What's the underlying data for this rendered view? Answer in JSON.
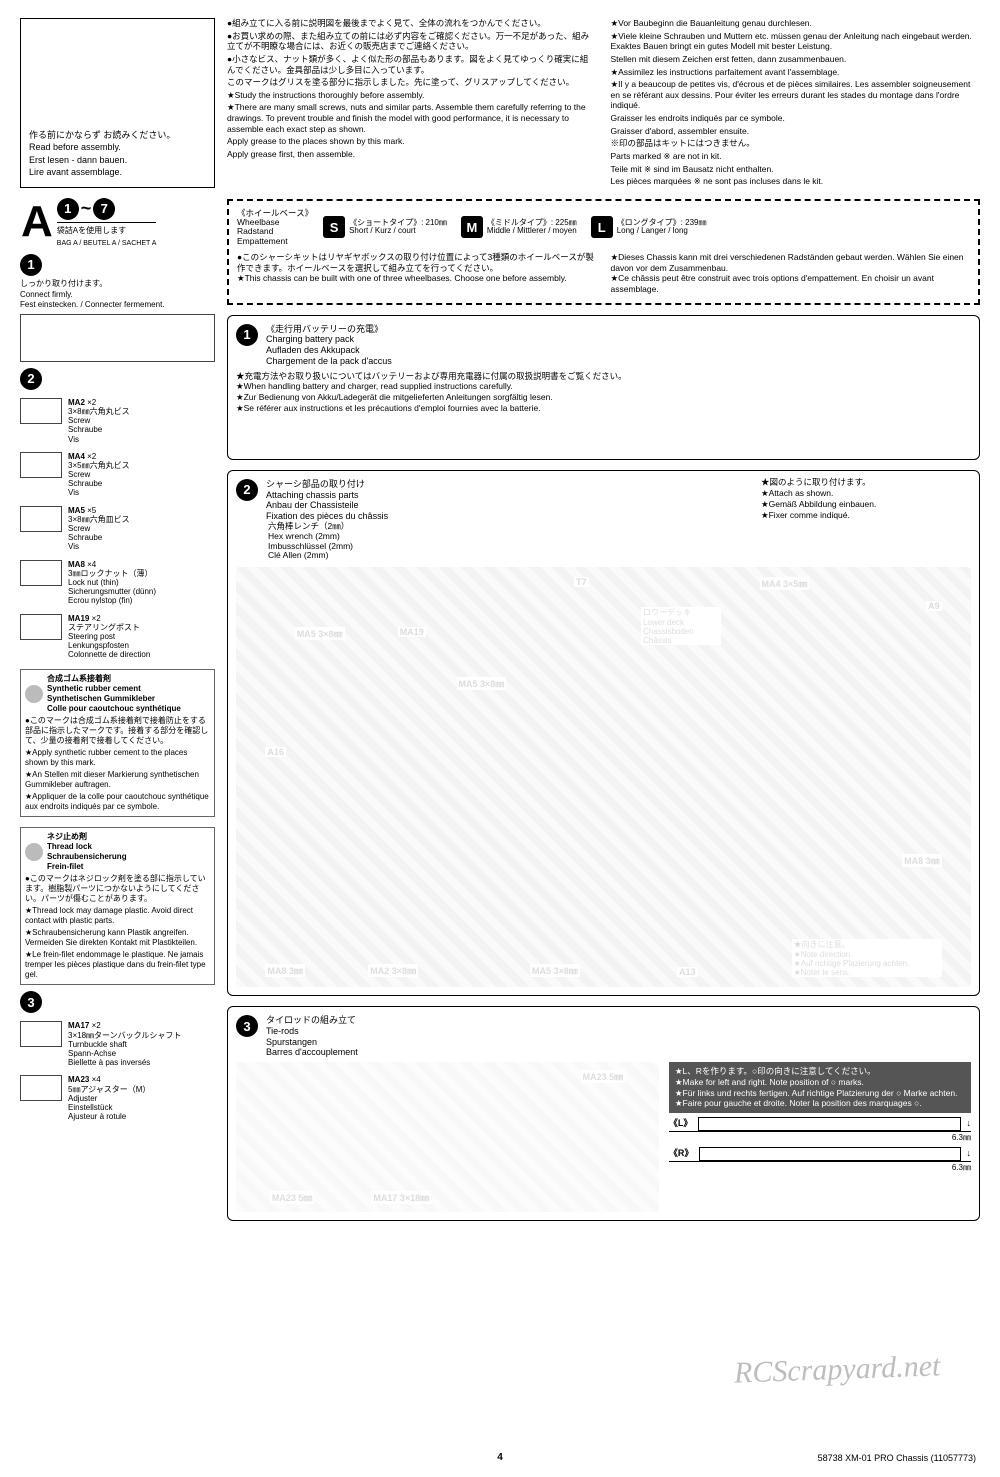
{
  "intro_left": {
    "jp": "作る前にかならず\nお読みください。",
    "en": "Read before assembly.",
    "de": "Erst lesen - dann bauen.",
    "fr": "Lire avant assemblage."
  },
  "section_A": {
    "letter": "A",
    "from": "1",
    "to": "7",
    "bag_jp": "袋詰Aを使用します",
    "bag": "BAG A / BEUTEL A / SACHET A"
  },
  "step1_note": {
    "jp": "しっかり取り付けます。",
    "en": "Connect firmly.",
    "de": "Fest einstecken. / Connecter fermement."
  },
  "parts2": [
    {
      "code": "MA2",
      "qty": "×2",
      "jp": "3×8㎜六角丸ビス",
      "en": "Screw",
      "de": "Schraube",
      "fr": "Vis"
    },
    {
      "code": "MA4",
      "qty": "×2",
      "jp": "3×5㎜六角丸ビス",
      "en": "Screw",
      "de": "Schraube",
      "fr": "Vis"
    },
    {
      "code": "MA5",
      "qty": "×5",
      "jp": "3×8㎜六角皿ビス",
      "en": "Screw",
      "de": "Schraube",
      "fr": "Vis"
    },
    {
      "code": "MA8",
      "qty": "×4",
      "jp": "3㎜ロックナット（薄）",
      "en": "Lock nut (thin)",
      "de": "Sicherungsmutter (dünn)",
      "fr": "Ecrou nylstop (fin)"
    },
    {
      "code": "MA19",
      "qty": "×2",
      "jp": "ステアリングポスト",
      "en": "Steering post",
      "de": "Lenkungspfosten",
      "fr": "Colonnette de direction"
    }
  ],
  "cement": {
    "hdr_jp": "合成ゴム系接着剤",
    "hdr_en": "Synthetic rubber cement",
    "hdr_de": "Synthetischen Gummikleber",
    "hdr_fr": "Colle pour caoutchouc synthétique",
    "note_jp": "●このマークは合成ゴム系接着剤で接着防止をする部品に指示したマークです。接着する部分を確認して、少量の接着剤で接着してください。",
    "note_en": "★Apply synthetic rubber cement to the places shown by this mark.",
    "note_de": "★An Stellen mit dieser Markierung synthetischen Gummikleber auftragen.",
    "note_fr": "★Appliquer de la colle pour caoutchouc synthétique aux endroits indiqués par ce symbole."
  },
  "threadlock": {
    "hdr_jp": "ネジ止め剤",
    "hdr_en": "Thread lock",
    "hdr_de": "Schraubensicherung",
    "hdr_fr": "Frein-filet",
    "note_jp": "●このマークはネジロック剤を塗る部に指示しています。樹脂製パーツにつかないようにしてください。パーツが傷むことがあります。",
    "note_en": "★Thread lock may damage plastic. Avoid direct contact with plastic parts.",
    "note_de": "★Schraubensicherung kann Plastik angreifen. Vermeiden Sie direkten Kontakt mit Plastikteilen.",
    "note_fr": "★Le frein-filet endommage le plastique. Ne jamais tremper les pièces plastique dans du frein-filet type gel."
  },
  "parts3": [
    {
      "code": "MA17",
      "qty": "×2",
      "jp": "3×18㎜ターンバックルシャフト",
      "en": "Turnbuckle shaft",
      "de": "Spann-Achse",
      "fr": "Biellette à pas inversés"
    },
    {
      "code": "MA23",
      "qty": "×4",
      "jp": "5㎜アジャスター（M）",
      "en": "Adjuster",
      "de": "Einstellstück",
      "fr": "Ajusteur à rotule"
    }
  ],
  "intro_main_left": [
    "●組み立てに入る前に説明図を最後までよく見て、全体の流れをつかんでください。",
    "●お買い求めの際、また組み立ての前には必ず内容をご確認ください。万一不足があった、組み立てが不明瞭な場合には、お近くの販売店までご連絡ください。",
    "●小さなビス、ナット類が多く、よく似た形の部品もあります。図をよく見てゆっくり確実に組んでください。金具部品は少し多目に入っています。",
    "このマークはグリスを塗る部分に指示しました。先に塗って、グリスアップしてください。",
    "★Study the instructions thoroughly before assembly.",
    "★There are many small screws, nuts and similar parts. Assemble them carefully referring to the drawings. To prevent trouble and finish the model with good performance, it is necessary to assemble each exact step as shown.",
    "Apply grease to the places shown by this mark.",
    "Apply grease first, then assemble."
  ],
  "intro_main_right": [
    "★Vor Baubeginn die Bauanleitung genau durchlesen.",
    "★Viele kleine Schrauben und Muttern etc. müssen genau der Anleitung nach eingebaut werden. Exaktes Bauen bringt ein gutes Modell mit bester Leistung.",
    "Stellen mit diesem Zeichen erst fetten, dann zusammenbauen.",
    "★Assimilez les instructions parfaitement avant l'assemblage.",
    "★Il y a beaucoup de petites vis, d'écrous et de pièces similaires. Les assembler soigneusement en se référant aux dessins. Pour éviter les erreurs durant les stades du montage dans l'ordre indiqué.",
    "Graisser les endroits indiqués par ce symbole.",
    "Graisser d'abord, assembler ensuite.",
    "※印の部品はキットにはつきません。",
    "Parts marked ※ are not in kit.",
    "Teile mit ※ sind im Bausatz nicht enthalten.",
    "Les pièces marquées ※ ne sont pas incluses dans le kit."
  ],
  "wheelbase": {
    "label_jp": "《ホイールベース》",
    "label_en": "Wheelbase",
    "label_de": "Radstand",
    "label_fr": "Empattement",
    "opts": [
      {
        "k": "S",
        "jp": "《ショートタイプ》: 210㎜",
        "ml": "Short / Kurz / court"
      },
      {
        "k": "M",
        "jp": "《ミドルタイプ》: 225㎜",
        "ml": "Middle / Mittlerer / moyen"
      },
      {
        "k": "L",
        "jp": "《ロングタイプ》: 239㎜",
        "ml": "Long / Langer / long"
      }
    ],
    "note_l_jp": "●このシャーシキットはリヤギヤボックスの取り付け位置によって3種類のホイールベースが製作できます。ホイールベースを選択して組み立てを行ってください。",
    "note_l_en": "★This chassis can be built with one of three wheelbases. Choose one before assembly.",
    "note_r_de": "★Dieses Chassis kann mit drei verschiedenen Radständen gebaut werden. Wählen Sie einen davon vor dem Zusammenbau.",
    "note_r_fr": "★Ce châssis peut être construit avec trois options d'empattement. En choisir un avant assemblage."
  },
  "panel1": {
    "title_jp": "《走行用バッテリーの充電》",
    "en": "Charging battery pack",
    "de": "Aufladen des Akkupack",
    "fr": "Chargement de la pack d'accus",
    "body_jp": "★充電方法やお取り扱いについてはバッテリーおよび専用充電器に付属の取扱説明書をご覧ください。",
    "body_en": "★When handling battery and charger, read supplied instructions carefully.",
    "body_de": "★Zur Bedienung von Akku/Ladegerät die mitgelieferten Anleitungen sorgfältig lesen.",
    "body_fr": "★Se référer aux instructions et les précautions d'emploi fournies avec la batterie."
  },
  "panel2": {
    "title_jp": "シャーシ部品の取り付け",
    "en": "Attaching chassis parts",
    "de": "Anbau der Chassisteile",
    "fr": "Fixation des pièces du châssis",
    "hex_jp": "六角棒レンチ（2㎜）",
    "hex_en": "Hex wrench (2mm)",
    "hex_de": "Imbusschlüssel (2mm)",
    "hex_fr": "Clé Allen (2mm)",
    "attach_jp": "★図のように取り付けます。",
    "attach_en": "★Attach as shown.",
    "attach_de": "★Gemäß Abbildung einbauen.",
    "attach_fr": "★Fixer comme indiqué.",
    "lowerdeck_jp": "ロワーデッキ",
    "lowerdeck_en": "Lower deck",
    "lowerdeck_de": "Chassisboden",
    "lowerdeck_fr": "Châssis",
    "dir_jp": "★向きに注意。",
    "dir_en": "★Note direction.",
    "dir_de": "★Auf richtige Plazierung achten.",
    "dir_fr": "★Noter le sens.",
    "callouts": {
      "T7": "T7",
      "MA19": "MA19",
      "MA5a": "MA5 3×8㎜",
      "MA5b": "MA5 3×8㎜",
      "MA4": "MA4 3×5㎜",
      "A9": "A9",
      "A16": "A16",
      "A13": "A13",
      "MA8a": "MA8 3㎜",
      "MA8b": "MA8 3㎜",
      "MA2": "MA2 3×8㎜"
    }
  },
  "panel3": {
    "title_jp": "タイロッドの組み立て",
    "en": "Tie-rods",
    "de": "Spurstangen",
    "fr": "Barres d'accouplement",
    "dark_jp": "★L、Rを作ります。○印の向きに注意してください。",
    "dark_en": "★Make for left and right. Note position of ○ marks.",
    "dark_de": "★Für links und rechts fertigen. Auf richtige Platzierung der ○ Marke achten.",
    "dark_fr": "★Faire pour gauche et droite. Noter la position des marquages ○.",
    "MA17": "MA17 3×18㎜",
    "MA23a": "MA23 5㎜",
    "MA23b": "MA23 5㎜",
    "L": "《L》",
    "R": "《R》",
    "dimL": "6.3㎜",
    "dimR": "6.3㎜"
  },
  "footer": {
    "page": "4",
    "model": "58738 XM-01 PRO Chassis (11057773)"
  },
  "watermark": "RCScrapyard.net"
}
